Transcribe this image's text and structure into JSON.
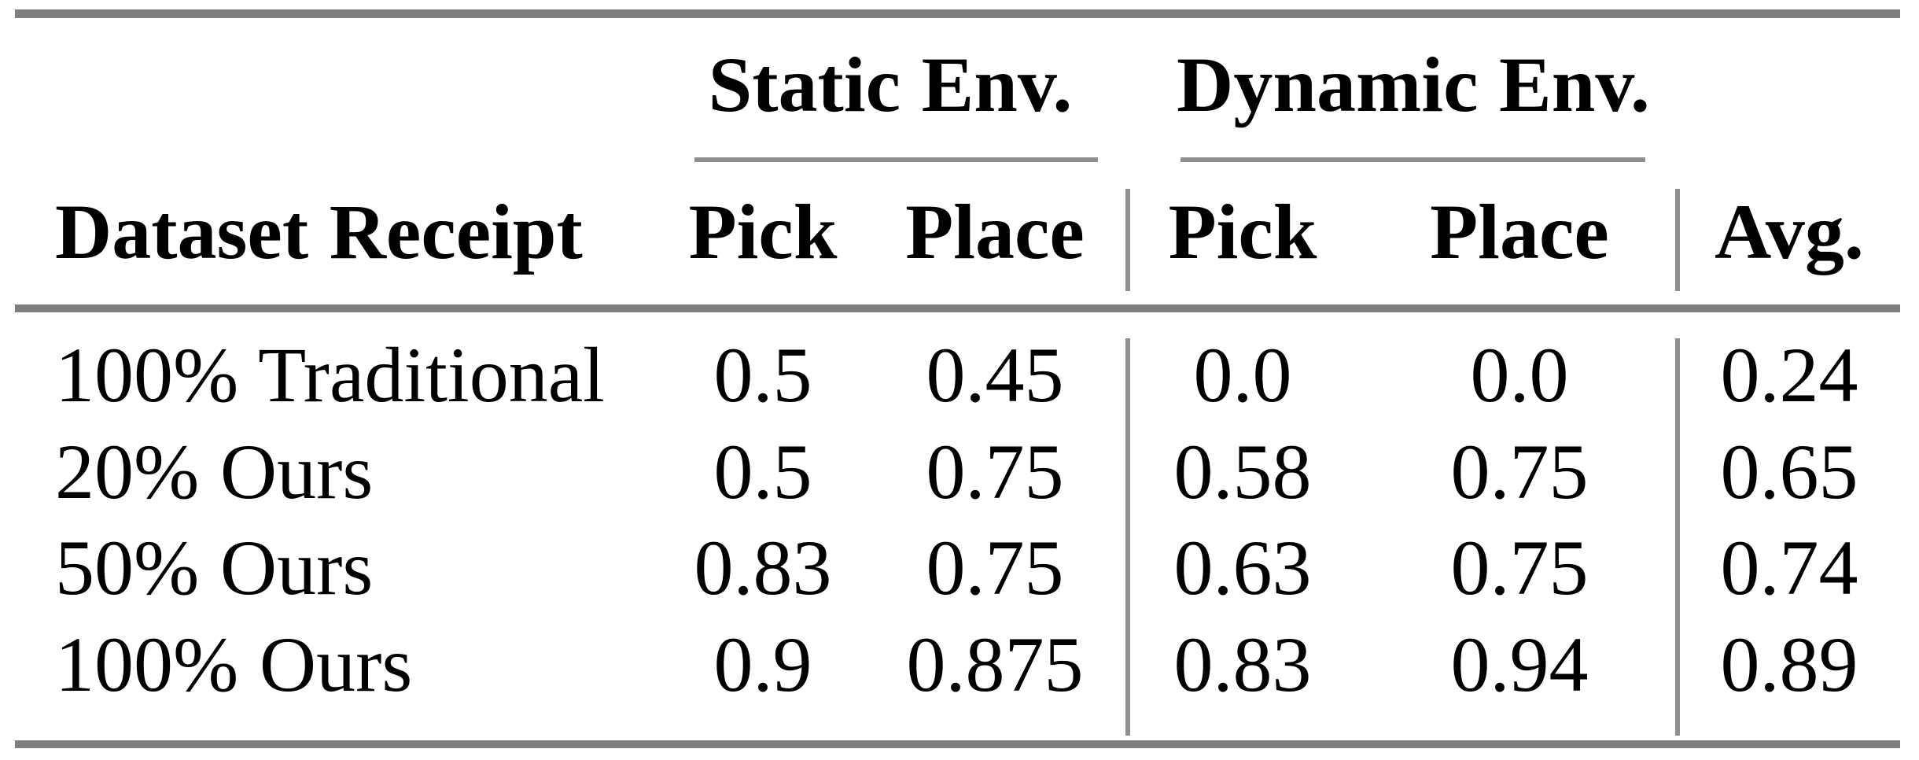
{
  "table": {
    "group_headers": [
      "Static Env.",
      "Dynamic Env."
    ],
    "columns": [
      "Dataset Receipt",
      "Pick",
      "Place",
      "Pick",
      "Place",
      "Avg."
    ],
    "rows": [
      [
        "100% Traditional",
        "0.5",
        "0.45",
        "0.0",
        "0.0",
        "0.24"
      ],
      [
        "20% Ours",
        "0.5",
        "0.75",
        "0.58",
        "0.75",
        "0.65"
      ],
      [
        "50% Ours",
        "0.83",
        "0.75",
        "0.63",
        "0.75",
        "0.74"
      ],
      [
        "100% Ours",
        "0.9",
        "0.875",
        "0.83",
        "0.94",
        "0.89"
      ]
    ],
    "colors": {
      "rule_heavy": "#7e7e7e",
      "rule_light": "#8e8e8e",
      "text": "#000000",
      "background": "#ffffff"
    }
  }
}
